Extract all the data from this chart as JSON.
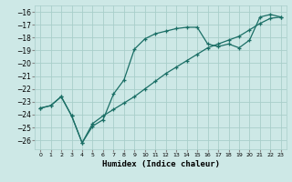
{
  "xlabel": "Humidex (Indice chaleur)",
  "bg_color": "#cde8e6",
  "grid_color": "#a8ceca",
  "line_color": "#1a6e65",
  "xlim": [
    -0.5,
    23.5
  ],
  "ylim": [
    -26.7,
    -15.5
  ],
  "yticks": [
    -26,
    -25,
    -24,
    -23,
    -22,
    -21,
    -20,
    -19,
    -18,
    -17,
    -16
  ],
  "xticks": [
    0,
    1,
    2,
    3,
    4,
    5,
    6,
    7,
    8,
    9,
    10,
    11,
    12,
    13,
    14,
    15,
    16,
    17,
    18,
    19,
    20,
    21,
    22,
    23
  ],
  "line1_x": [
    0,
    1,
    2,
    3,
    4,
    5,
    6,
    7,
    8,
    9,
    10,
    11,
    12,
    13,
    14,
    15,
    16,
    17,
    18,
    19,
    20,
    21,
    22,
    23
  ],
  "line1_y": [
    -23.5,
    -23.3,
    -22.6,
    -24.1,
    -26.2,
    -24.9,
    -24.4,
    -22.4,
    -21.3,
    -18.9,
    -18.1,
    -17.7,
    -17.5,
    -17.3,
    -17.2,
    -17.2,
    -18.5,
    -18.7,
    -18.5,
    -18.8,
    -18.2,
    -16.4,
    -16.2,
    -16.4
  ],
  "line2_x": [
    0,
    1,
    2,
    3,
    4,
    5,
    6,
    7,
    8,
    9,
    10,
    11,
    12,
    13,
    14,
    15,
    16,
    17,
    18,
    19,
    20,
    21,
    22,
    23
  ],
  "line2_y": [
    -23.5,
    -23.3,
    -22.6,
    -24.1,
    -26.2,
    -24.7,
    -24.1,
    -23.6,
    -23.1,
    -22.6,
    -22.0,
    -21.4,
    -20.8,
    -20.3,
    -19.8,
    -19.3,
    -18.8,
    -18.5,
    -18.2,
    -17.9,
    -17.4,
    -16.9,
    -16.5,
    -16.4
  ]
}
